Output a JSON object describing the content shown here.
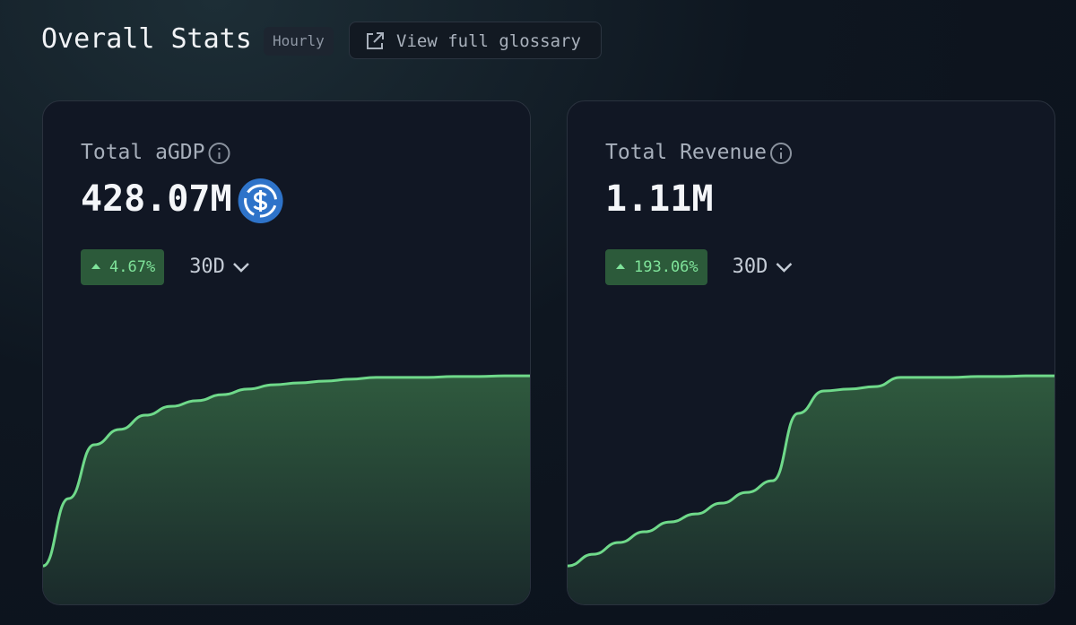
{
  "header": {
    "title": "Overall Stats",
    "badge": "Hourly",
    "link": "View full glossary"
  },
  "cards": [
    {
      "label": "Total aGDP",
      "value": "428.07M",
      "change": "4.67%",
      "period": "30D",
      "chart": {
        "type": "area",
        "color": "#6fd98a",
        "ylim": [
          0,
          100
        ],
        "values": [
          12.5,
          34.4,
          51.9,
          56.9,
          61.5,
          64.4,
          66.2,
          68.2,
          70.0,
          71.4,
          72.0,
          72.6,
          73.2,
          73.8,
          73.8,
          73.8,
          74.1,
          74.1,
          74.3,
          74.3
        ]
      }
    },
    {
      "label": "Total Revenue",
      "value": "1.11M",
      "change": "193.06%",
      "period": "30D",
      "chart": {
        "type": "area",
        "color": "#6fd98a",
        "ylim": [
          0,
          100
        ],
        "values": [
          12.5,
          16.3,
          20.1,
          23.6,
          26.8,
          29.4,
          32.9,
          36.4,
          40.2,
          62.1,
          69.4,
          70.0,
          70.8,
          73.8,
          73.8,
          73.8,
          74.1,
          74.1,
          74.3,
          74.3
        ]
      }
    }
  ]
}
